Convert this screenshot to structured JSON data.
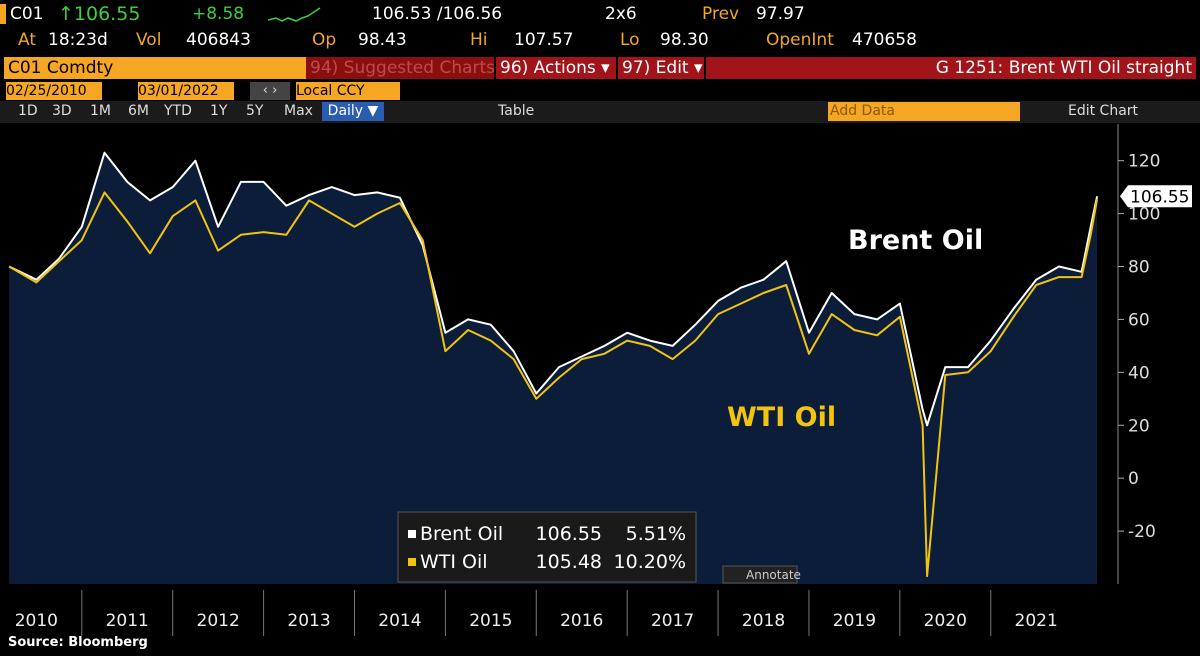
{
  "ui": {
    "header": {
      "ticker": "C01",
      "last": "↑106.55",
      "change": "+8.58",
      "bidask": "106.53 /106.56",
      "size": "2x6",
      "prev_label": "Prev",
      "prev": "97.97",
      "at_label": "At",
      "time": "18:23d",
      "vol_label": "Vol",
      "vol": "406843",
      "op_label": "Op",
      "op": "98.43",
      "hi_label": "Hi",
      "hi": "107.57",
      "lo_label": "Lo",
      "lo": "98.30",
      "oi_label": "OpenInt",
      "oi": "470658"
    },
    "toolbar": {
      "security": "C01 Comdty",
      "suggested": "94) Suggested Charts",
      "actions": "96) Actions ▾",
      "edit": "97) Edit ▾",
      "chart_name": "G 1251: Brent WTI Oil straight",
      "start_date": "02/25/2010",
      "end_date": "03/01/2022",
      "currency": "Local CCY",
      "ranges": [
        "1D",
        "3D",
        "1M",
        "6M",
        "YTD",
        "1Y",
        "5Y",
        "Max"
      ],
      "period": "Daily ▼",
      "table": "Table",
      "add_data": "Add Data",
      "edit_chart": "Edit Chart"
    },
    "legend_changes": [
      "5.51%",
      "10.20%"
    ],
    "annotate": "Annotate",
    "source": "Source: Bloomberg"
  },
  "chart_data": {
    "type": "line",
    "x": [
      2010.2,
      2010.5,
      2010.75,
      2011.0,
      2011.25,
      2011.5,
      2011.75,
      2012.0,
      2012.25,
      2012.5,
      2012.75,
      2013.0,
      2013.25,
      2013.5,
      2013.75,
      2014.0,
      2014.25,
      2014.5,
      2014.75,
      2015.0,
      2015.25,
      2015.5,
      2015.75,
      2016.0,
      2016.25,
      2016.5,
      2016.75,
      2017.0,
      2017.25,
      2017.5,
      2017.75,
      2018.0,
      2018.25,
      2018.5,
      2018.75,
      2019.0,
      2019.25,
      2019.5,
      2019.75,
      2020.0,
      2020.25,
      2020.3,
      2020.5,
      2020.75,
      2021.0,
      2021.25,
      2021.5,
      2021.75,
      2022.0,
      2022.1,
      2022.17
    ],
    "series": [
      {
        "name": "Brent Oil",
        "color": "#ffffff",
        "fill": "#0b1d38",
        "values": [
          80,
          75,
          83,
          95,
          123,
          112,
          105,
          110,
          120,
          95,
          112,
          112,
          103,
          107,
          110,
          107,
          108,
          106,
          88,
          55,
          60,
          58,
          48,
          32,
          42,
          46,
          50,
          55,
          52,
          50,
          58,
          67,
          72,
          75,
          82,
          55,
          70,
          62,
          60,
          66,
          26,
          20,
          42,
          42,
          52,
          64,
          75,
          80,
          78,
          95,
          106.55
        ]
      },
      {
        "name": "WTI Oil",
        "color": "#f2c40f",
        "values": [
          80,
          74,
          82,
          90,
          108,
          97,
          85,
          99,
          105,
          86,
          92,
          93,
          92,
          105,
          100,
          95,
          100,
          104,
          90,
          48,
          56,
          52,
          45,
          30,
          38,
          45,
          47,
          52,
          50,
          45,
          52,
          62,
          66,
          70,
          73,
          47,
          62,
          56,
          54,
          61,
          20,
          -37,
          39,
          40,
          48,
          61,
          73,
          76,
          76,
          92,
          105.48
        ]
      }
    ],
    "xlim": [
      2010.1,
      2022.4
    ],
    "xticks": [
      2010,
      2011,
      2012,
      2013,
      2014,
      2015,
      2016,
      2017,
      2018,
      2019,
      2020,
      2021
    ],
    "ylim": [
      -40,
      135
    ],
    "yticks": [
      -20,
      0,
      20,
      40,
      60,
      80,
      100,
      120
    ]
  }
}
